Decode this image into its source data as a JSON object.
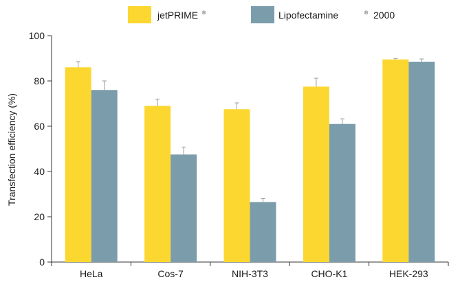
{
  "chart_data": {
    "type": "bar",
    "title": "",
    "xlabel": "",
    "ylabel": "Transfection efficiency (%)",
    "ylim": [
      0,
      100
    ],
    "yticks": [
      0,
      20,
      40,
      60,
      80,
      100
    ],
    "grid": false,
    "legend_position": "top",
    "categories": [
      "HeLa",
      "Cos-7",
      "NIH-3T3",
      "CHO-K1",
      "HEK-293"
    ],
    "series": [
      {
        "name": "jetPRIME",
        "legend_mark": "®",
        "color": "#fcd730",
        "values": [
          86,
          69,
          67.5,
          77.5,
          89.5
        ],
        "errors": [
          2.5,
          3,
          2.8,
          3.7,
          0.4
        ]
      },
      {
        "name": "Lipofectamine",
        "legend_mark": "®",
        "legend_suffix": "2000",
        "color": "#7b9dab",
        "values": [
          76,
          47.5,
          26.5,
          61,
          88.5
        ],
        "errors": [
          4,
          3.3,
          1.5,
          2.3,
          1.2
        ]
      }
    ]
  }
}
